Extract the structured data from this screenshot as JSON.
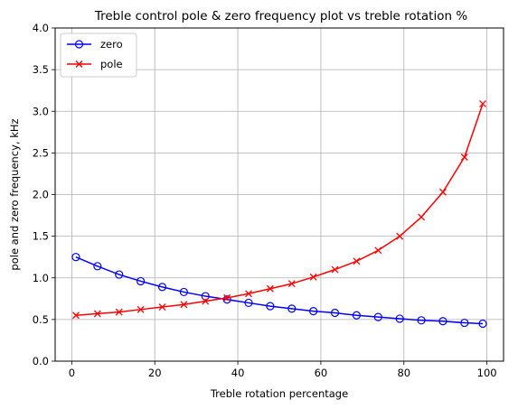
{
  "chart_data": {
    "type": "line",
    "title": "Treble control pole & zero frequency plot vs treble rotation %",
    "xlabel": "Treble rotation percentage",
    "ylabel": "pole and zero frequency, kHz",
    "xlim": [
      -4,
      104
    ],
    "ylim": [
      0,
      4
    ],
    "xticks": [
      0,
      20,
      40,
      60,
      80,
      100
    ],
    "yticks": [
      0.0,
      0.5,
      1.0,
      1.5,
      2.0,
      2.5,
      3.0,
      3.5,
      4.0
    ],
    "xtick_labels": [
      "0",
      "20",
      "40",
      "60",
      "80",
      "100"
    ],
    "ytick_labels": [
      "0.0",
      "0.5",
      "1.0",
      "1.5",
      "2.0",
      "2.5",
      "3.0",
      "3.5",
      "4.0"
    ],
    "grid": true,
    "legend": "top-left",
    "x": [
      1,
      6.2,
      11.4,
      16.6,
      21.8,
      27,
      32.2,
      37.4,
      42.6,
      47.8,
      53,
      58.2,
      63.4,
      68.6,
      73.8,
      79,
      84.2,
      89.4,
      94.6,
      99
    ],
    "series": [
      {
        "name": "zero",
        "color": "#0000ff",
        "marker": "circle",
        "values": [
          1.25,
          1.14,
          1.04,
          0.96,
          0.89,
          0.83,
          0.78,
          0.74,
          0.7,
          0.66,
          0.63,
          0.6,
          0.58,
          0.55,
          0.53,
          0.51,
          0.49,
          0.48,
          0.46,
          0.45
        ]
      },
      {
        "name": "pole",
        "color": "#ff0000",
        "marker": "x",
        "values": [
          0.55,
          0.57,
          0.59,
          0.62,
          0.65,
          0.68,
          0.72,
          0.76,
          0.81,
          0.87,
          0.93,
          1.01,
          1.1,
          1.2,
          1.33,
          1.5,
          1.73,
          2.03,
          2.45,
          3.09
        ]
      }
    ]
  }
}
